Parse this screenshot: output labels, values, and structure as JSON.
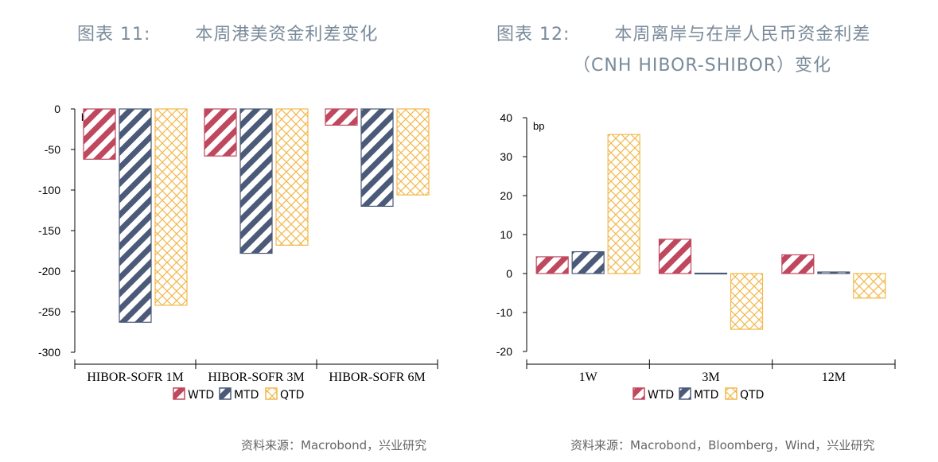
{
  "colors": {
    "WTD": "#c0485e",
    "MTD": "#4a5a78",
    "QTD": "#f2b84a"
  },
  "chart_data": [
    {
      "type": "bar",
      "title_prefix": "图表 11:",
      "title": "本周港美资金利差变化",
      "ylabel": "bp",
      "ylim": [
        -300,
        0
      ],
      "yticks": [
        0,
        -50,
        -100,
        -150,
        -200,
        -250,
        -300
      ],
      "categories": [
        "HIBOR-SOFR 1M",
        "HIBOR-SOFR 3M",
        "HIBOR-SOFR 6M"
      ],
      "series": [
        {
          "name": "WTD",
          "values": [
            -62,
            -58,
            -20
          ]
        },
        {
          "name": "MTD",
          "values": [
            -263,
            -178,
            -120
          ]
        },
        {
          "name": "QTD",
          "values": [
            -242,
            -168,
            -106
          ]
        }
      ],
      "legend": "bottom",
      "source": "资料来源：Macrobond，兴业研究"
    },
    {
      "type": "bar",
      "title_prefix": "图表 12:",
      "title": "本周离岸与在岸人民币资金利差",
      "title_line2": "（CNH HIBOR-SHIBOR）变化",
      "ylabel": "bp",
      "ylim": [
        -20,
        40
      ],
      "yticks": [
        40,
        30,
        20,
        10,
        0,
        -10,
        -20
      ],
      "categories": [
        "1W",
        "3M",
        "12M"
      ],
      "series": [
        {
          "name": "WTD",
          "values": [
            4.3,
            8.8,
            4.8
          ]
        },
        {
          "name": "MTD",
          "values": [
            5.6,
            0.1,
            0.4
          ]
        },
        {
          "name": "QTD",
          "values": [
            35.7,
            -14.3,
            -6.3
          ]
        }
      ],
      "legend": "bottom",
      "source": "资料来源：Macrobond，Bloomberg，Wind，兴业研究"
    }
  ]
}
